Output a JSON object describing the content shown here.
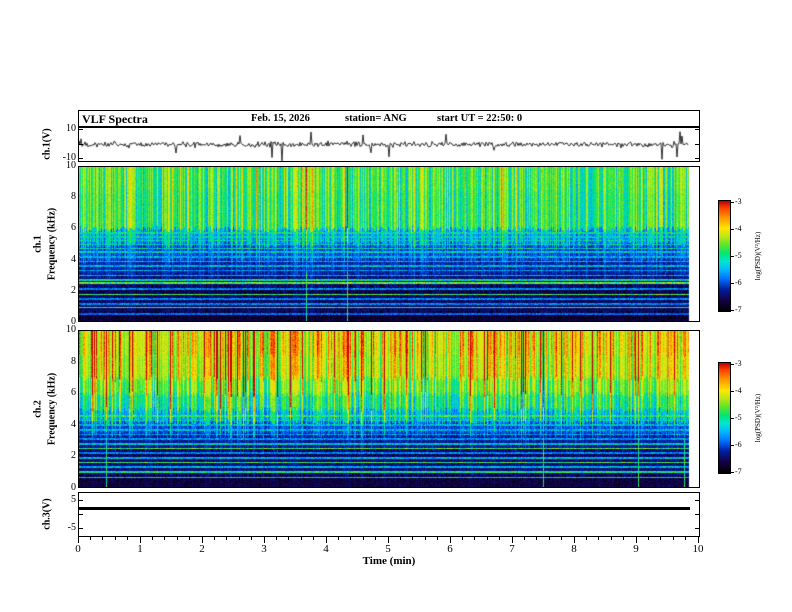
{
  "header": {
    "title": "VLF Spectra",
    "date": "Feb. 15, 2026",
    "station": "station= ANG",
    "start_ut": "start UT =  22:50: 0"
  },
  "x_axis": {
    "label": "Time (min)",
    "tick_labels": [
      "0",
      "1",
      "2",
      "3",
      "4",
      "5",
      "6",
      "7",
      "8",
      "9",
      "10"
    ]
  },
  "ch1_wave_axis": {
    "label": "ch.1(V)",
    "tick_labels": [
      "10",
      "-10"
    ]
  },
  "freq_axis": {
    "label": "Frequency (kHz)",
    "tick_labels": [
      "10",
      "8",
      "6",
      "4",
      "2",
      "0"
    ]
  },
  "ch1_label": "ch.1",
  "ch2_label": "ch.2",
  "ch3_axis": {
    "label": "ch.3(V)",
    "tick_labels": [
      "5",
      "-5"
    ]
  },
  "colorbar": {
    "label": "log(PSD)(V²/Hz)",
    "tick_labels": [
      "-3",
      "-4",
      "-5",
      "-6",
      "-7"
    ]
  },
  "chart_data": [
    {
      "type": "line",
      "name": "ch1-raw-waveform",
      "ylabel": "ch.1(V)",
      "xlim_min": [
        0,
        10
      ],
      "ylim_v": [
        -10,
        10
      ],
      "description": "Continuous noisy trace centered on 0 V, typical amplitude about ±2 V with frequent impulsive spikes reaching ±4 to -9 V",
      "noise_sigma_v": 0.9,
      "spike_probability": 0.025,
      "spike_max_v": 9
    },
    {
      "type": "heatmap",
      "name": "ch1-spectrogram",
      "ylabel": "ch.1 Frequency (kHz)",
      "xlim_min": [
        0,
        10
      ],
      "ylim_khz": [
        0,
        10
      ],
      "zlabel": "log(PSD)(V²/Hz)",
      "zlim": [
        -7,
        -3
      ],
      "description": "Broadband green/yellow sferic activity above ~6 kHz with dense vertical streaks, cyan-blue 4-6 kHz, dark blue/black below 4 kHz crossed by narrow horizontal interference lines",
      "bands": [
        [
          0,
          0.6,
          0.06
        ],
        [
          0.6,
          1.9,
          0.13
        ],
        [
          1.9,
          2.3,
          0.08
        ],
        [
          2.3,
          3,
          0.16
        ],
        [
          3,
          4,
          0.22
        ],
        [
          4,
          5,
          0.3
        ],
        [
          5,
          6,
          0.42
        ],
        [
          6,
          8.5,
          0.58
        ],
        [
          8.5,
          10.01,
          0.6
        ]
      ],
      "lines": [
        [
          5.75,
          0.5
        ],
        [
          5.5,
          0.46
        ],
        [
          5.25,
          0.48
        ],
        [
          5.0,
          0.46
        ],
        [
          4.75,
          0.5
        ],
        [
          4.5,
          0.46
        ],
        [
          4.2,
          0.42
        ],
        [
          3.9,
          0.44
        ],
        [
          3.6,
          0.42
        ],
        [
          3.3,
          0.4
        ],
        [
          3.0,
          0.42
        ],
        [
          2.7,
          0.5
        ],
        [
          2.5,
          0.62
        ],
        [
          2.1,
          0.36
        ],
        [
          1.75,
          0.6
        ],
        [
          1.45,
          0.36
        ],
        [
          1.15,
          0.36
        ],
        [
          0.9,
          0.55
        ],
        [
          0.5,
          0.32
        ]
      ],
      "streak_max": 0.35,
      "streak_probability": 0.12
    },
    {
      "type": "heatmap",
      "name": "ch2-spectrogram",
      "ylabel": "ch.2 Frequency (kHz)",
      "xlim_min": [
        0,
        10
      ],
      "ylim_khz": [
        0,
        10
      ],
      "zlabel": "log(PSD)(V²/Hz)",
      "zlim": [
        -7,
        -3
      ],
      "description": "Stronger activity: orange/red streaks above ~7 kHz, yellow-green 5-7 kHz, cyan 4-5 kHz, dark blue below with narrow horizontal interference lines",
      "bands": [
        [
          0,
          0.8,
          0.08
        ],
        [
          0.8,
          1.8,
          0.15
        ],
        [
          1.8,
          2.5,
          0.12
        ],
        [
          2.5,
          3.4,
          0.2
        ],
        [
          3.4,
          4.2,
          0.3
        ],
        [
          4.2,
          5,
          0.45
        ],
        [
          5,
          6,
          0.56
        ],
        [
          6,
          7,
          0.66
        ],
        [
          7,
          8.5,
          0.76
        ],
        [
          8.5,
          10.01,
          0.8
        ]
      ],
      "lines": [
        [
          4.6,
          0.55
        ],
        [
          4.3,
          0.46
        ],
        [
          4.0,
          0.44
        ],
        [
          3.7,
          0.42
        ],
        [
          3.4,
          0.4
        ],
        [
          3.1,
          0.38
        ],
        [
          2.8,
          0.46
        ],
        [
          2.5,
          0.6
        ],
        [
          2.2,
          0.36
        ],
        [
          1.9,
          0.42
        ],
        [
          1.6,
          0.58
        ],
        [
          1.3,
          0.42
        ],
        [
          1.0,
          0.52
        ],
        [
          0.65,
          0.46
        ]
      ],
      "streak_max": 0.6,
      "streak_probability": 0.14
    },
    {
      "type": "line",
      "name": "ch3-flatline",
      "ylabel": "ch.3(V)",
      "xlim_min": [
        0,
        10
      ],
      "ylim_v": [
        -7.5,
        7.5
      ],
      "value_v": 2,
      "description": "Flat constant trace (no signal) drawn as a thick horizontal black line"
    }
  ]
}
